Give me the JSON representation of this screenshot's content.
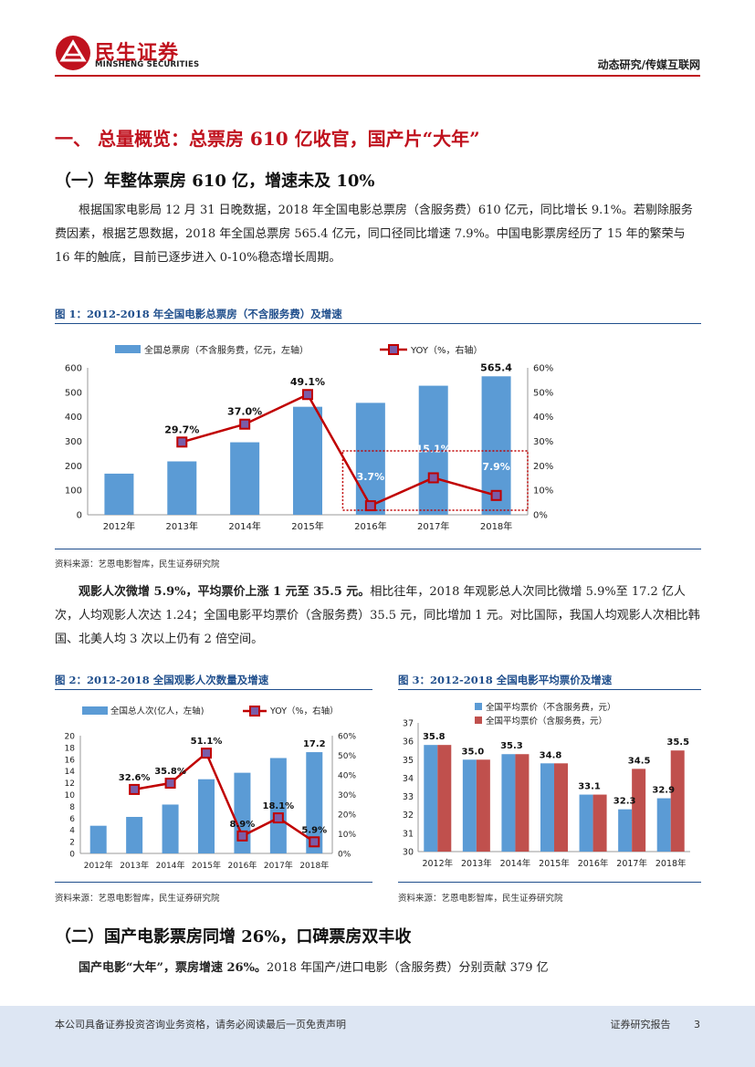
{
  "header": {
    "logo_cn": "民生证券",
    "logo_en": "MINSHENG SECURITIES",
    "category": "动态研究/传媒互联网"
  },
  "section1": {
    "title": "一、 总量概览：总票房 610 亿收官，国产片“大年”"
  },
  "sub1": {
    "title": "（一）年整体票房 610 亿，增速未及 10%",
    "paragraph": "根据国家电影局 12 月 31 日晚数据，2018 年全国电影总票房（含服务费）610 亿元，同比增长 9.1%。若剔除服务费因素，根据艺恩数据，2018 年全国总票房 565.4 亿元，同口径同比增速 7.9%。中国电影票房经历了 15 年的繁荣与 16 年的触底，目前已逐步进入 0-10%稳态增长周期。"
  },
  "fig1": {
    "title": "图 1：2012-2018 年全国电影总票房（不含服务费）及增速",
    "source": "资料来源：艺恩电影智库，民生证券研究院"
  },
  "para2": {
    "bold": "观影人次微增 5.9%，平均票价上涨 1 元至 35.5 元。",
    "text": "相比往年，2018 年观影总人次同比微增 5.9%至 17.2 亿人次，人均观影人次达 1.24；全国电影平均票价（含服务费）35.5 元，同比增加 1 元。对比国际，我国人均观影人次相比韩国、北美人均 3 次以上仍有 2 倍空间。"
  },
  "fig2": {
    "title": "图 2：2012-2018 全国观影人次数量及增速",
    "source": "资料来源：艺恩电影智库，民生证券研究院"
  },
  "fig3": {
    "title": "图 3：2012-2018 全国电影平均票价及增速",
    "source": "资料来源：艺恩电影智库，民生证券研究院"
  },
  "sub2": {
    "title": "（二）国产电影票房同增 26%，口碑票房双丰收",
    "bold": "国产电影“大年”，票房增速 26%。",
    "text": "2018 年国产/进口电影（含服务费）分别贡献 379 亿"
  },
  "footer": {
    "left": "本公司具备证券投资咨询业务资格，请务必阅读最后一页免责声明",
    "right": "证券研究报告",
    "page": "3"
  },
  "colors": {
    "bar": "#5b9bd5",
    "bar_red": "#c0504d",
    "line": "#c00000",
    "title_red": "#c0121e",
    "figure_blue": "#1f4e8c"
  },
  "chart_data": [
    {
      "type": "bar",
      "id": "fig1",
      "categories": [
        "2012年",
        "2013年",
        "2014年",
        "2015年",
        "2016年",
        "2017年",
        "2018年"
      ],
      "series": [
        {
          "name": "全国总票房（不含服务费，亿元，左轴）",
          "kind": "bar",
          "axis": "left",
          "values": [
            168,
            218,
            296,
            441,
            457,
            527,
            565.4
          ]
        },
        {
          "name": "YOY（%，右轴）",
          "kind": "line",
          "axis": "right",
          "values": [
            null,
            29.7,
            37.0,
            49.1,
            3.7,
            15.1,
            7.9
          ]
        }
      ],
      "value_labels": {
        "bar_last": "565.4",
        "line": [
          "",
          "29.7%",
          "37.0%",
          "49.1%",
          "3.7%",
          "15.1%",
          "7.9%"
        ]
      },
      "ylim": [
        0,
        600
      ],
      "yticks": [
        "0",
        "100",
        "200",
        "300",
        "400",
        "500",
        "600"
      ],
      "y2lim": [
        0,
        60
      ],
      "y2ticks": [
        "0%",
        "10%",
        "20%",
        "30%",
        "40%",
        "50%",
        "60%"
      ],
      "annotation": "dashed box around 2016-2018",
      "legend": "top"
    },
    {
      "type": "bar",
      "id": "fig2",
      "categories": [
        "2012年",
        "2013年",
        "2014年",
        "2015年",
        "2016年",
        "2017年",
        "2018年"
      ],
      "series": [
        {
          "name": "全国总人次(亿人，左轴)",
          "kind": "bar",
          "axis": "left",
          "values": [
            4.7,
            6.2,
            8.3,
            12.6,
            13.7,
            16.2,
            17.2
          ]
        },
        {
          "name": "YOY（%，右轴）",
          "kind": "line",
          "axis": "right",
          "values": [
            null,
            32.6,
            35.8,
            51.1,
            8.9,
            18.1,
            5.9
          ]
        }
      ],
      "value_labels": {
        "bar_last": "17.2",
        "line": [
          "",
          "32.6%",
          "35.8%",
          "51.1%",
          "8.9%",
          "18.1%",
          "5.9%"
        ]
      },
      "ylim": [
        0,
        20
      ],
      "yticks": [
        "0",
        "2",
        "4",
        "6",
        "8",
        "10",
        "12",
        "14",
        "16",
        "18",
        "20"
      ],
      "y2lim": [
        0,
        60
      ],
      "y2ticks": [
        "0%",
        "10%",
        "20%",
        "30%",
        "40%",
        "50%",
        "60%"
      ],
      "legend": "top"
    },
    {
      "type": "bar",
      "id": "fig3",
      "categories": [
        "2012年",
        "2013年",
        "2014年",
        "2015年",
        "2016年",
        "2017年",
        "2018年"
      ],
      "series": [
        {
          "name": "全国平均票价（不含服务费，元）",
          "values": [
            35.8,
            35.0,
            35.3,
            34.8,
            33.1,
            32.3,
            32.9
          ]
        },
        {
          "name": "全国平均票价（含服务费，元）",
          "values": [
            35.8,
            35.0,
            35.3,
            34.8,
            33.1,
            34.5,
            35.5
          ]
        }
      ],
      "value_labels": [
        "35.8",
        "35.0",
        "35.3",
        "34.8",
        "33.1",
        "32.3",
        "34.5",
        "32.9",
        "35.5"
      ],
      "ylim": [
        30,
        37
      ],
      "yticks": [
        "30",
        "31",
        "32",
        "33",
        "34",
        "35",
        "36",
        "37"
      ],
      "legend": "top-left"
    }
  ]
}
